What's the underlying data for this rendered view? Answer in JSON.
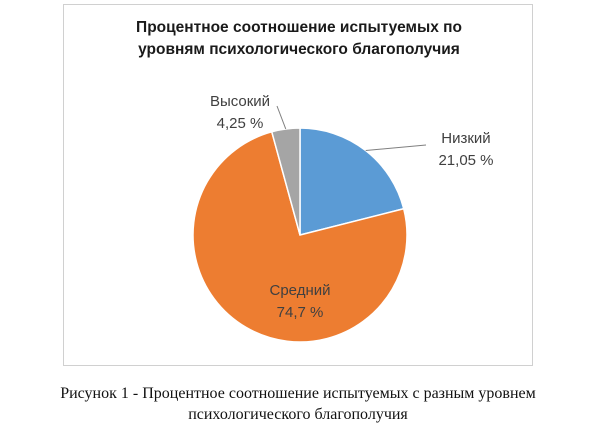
{
  "chart_data": {
    "type": "pie",
    "title": "Процентное соотношение испытуемых по уровням психологического благополучия",
    "title_lines": [
      "Процентное соотношение испытуемых по",
      "уровням психологического благополучия"
    ],
    "categories": [
      "Низкий",
      "Средний",
      "Высокий"
    ],
    "values": [
      21.05,
      74.7,
      4.25
    ],
    "value_labels": [
      "21,05 %",
      "74,7 %",
      "4,25 %"
    ],
    "colors": [
      "#5b9bd5",
      "#ed7d31",
      "#a5a5a5"
    ],
    "legend": "none"
  },
  "caption_lines": [
    "Рисунок 1 - Процентное соотношение испытуемых с разным уровнем",
    "психологического благополучия"
  ]
}
